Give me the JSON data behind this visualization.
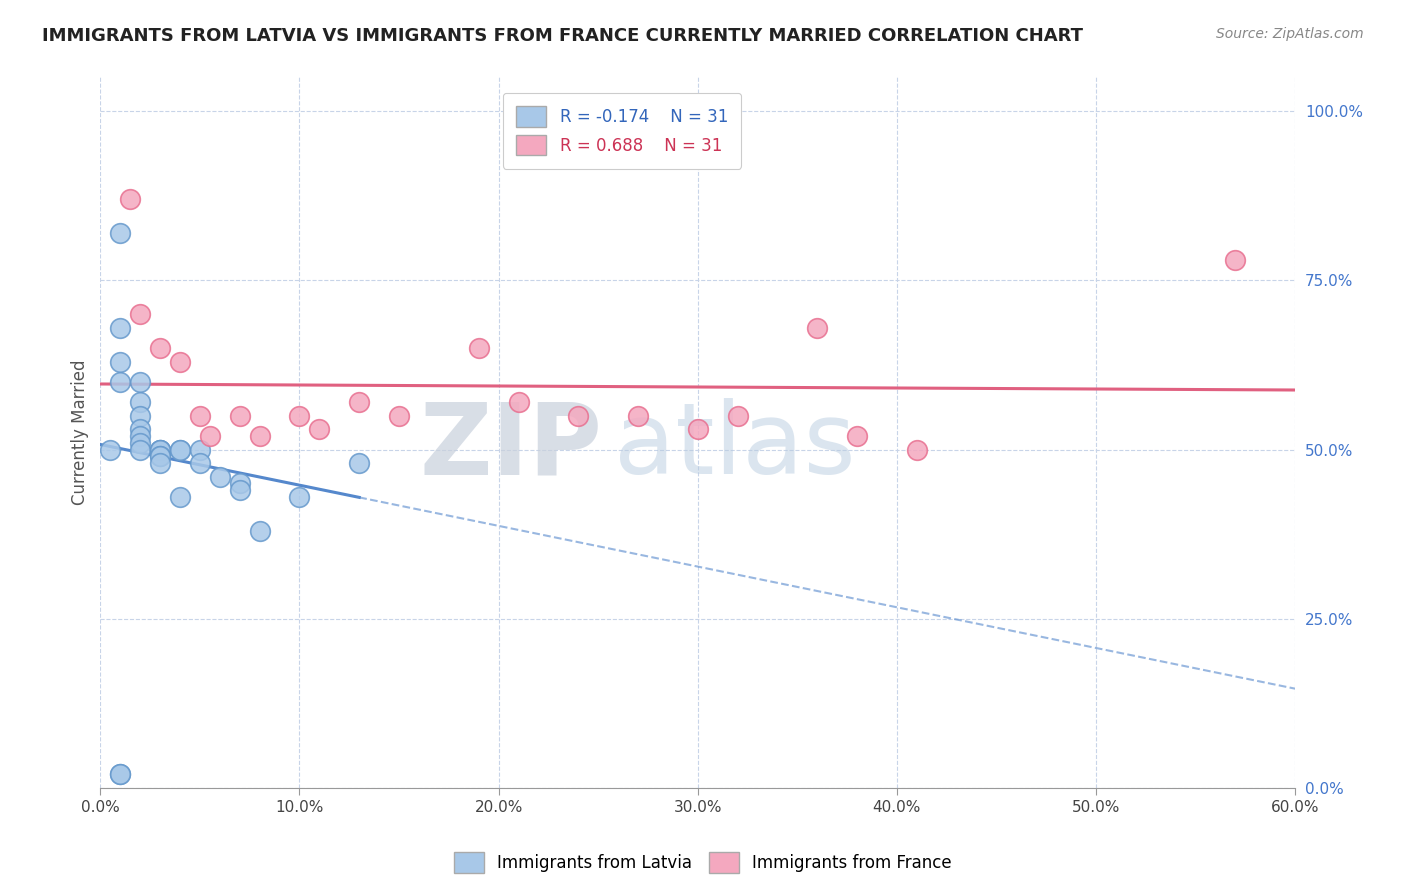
{
  "title": "IMMIGRANTS FROM LATVIA VS IMMIGRANTS FROM FRANCE CURRENTLY MARRIED CORRELATION CHART",
  "source": "Source: ZipAtlas.com",
  "ylabel": "Currently Married",
  "xlim": [
    0.0,
    0.6
  ],
  "ylim": [
    0.0,
    1.05
  ],
  "latvia_x": [
    0.005,
    0.01,
    0.01,
    0.01,
    0.01,
    0.02,
    0.02,
    0.02,
    0.02,
    0.02,
    0.02,
    0.02,
    0.03,
    0.03,
    0.03,
    0.03,
    0.03,
    0.03,
    0.04,
    0.04,
    0.04,
    0.05,
    0.05,
    0.06,
    0.07,
    0.07,
    0.08,
    0.1,
    0.13,
    0.01,
    0.01
  ],
  "latvia_y": [
    0.5,
    0.82,
    0.68,
    0.63,
    0.6,
    0.6,
    0.57,
    0.55,
    0.53,
    0.52,
    0.51,
    0.5,
    0.5,
    0.5,
    0.5,
    0.49,
    0.49,
    0.48,
    0.5,
    0.5,
    0.43,
    0.5,
    0.48,
    0.46,
    0.45,
    0.44,
    0.38,
    0.43,
    0.48,
    0.02,
    0.02
  ],
  "france_x": [
    0.015,
    0.02,
    0.03,
    0.04,
    0.05,
    0.055,
    0.07,
    0.08,
    0.1,
    0.11,
    0.13,
    0.15,
    0.19,
    0.21,
    0.24,
    0.27,
    0.3,
    0.32,
    0.36,
    0.38,
    0.41,
    0.57
  ],
  "france_y": [
    0.87,
    0.7,
    0.65,
    0.63,
    0.55,
    0.52,
    0.55,
    0.52,
    0.55,
    0.53,
    0.57,
    0.55,
    0.65,
    0.57,
    0.55,
    0.55,
    0.53,
    0.55,
    0.68,
    0.52,
    0.5,
    0.78
  ],
  "latvia_color": "#a8c8e8",
  "france_color": "#f4a8bf",
  "latvia_edge_color": "#6699cc",
  "france_edge_color": "#e87090",
  "latvia_line_color": "#5588cc",
  "france_line_color": "#e06080",
  "legend_r_latvia": "R = -0.174",
  "legend_r_france": "R = 0.688",
  "legend_n": "N = 31",
  "watermark_zip": "ZIP",
  "watermark_atlas": "atlas",
  "background_color": "#ffffff",
  "grid_color": "#c8d4e8"
}
